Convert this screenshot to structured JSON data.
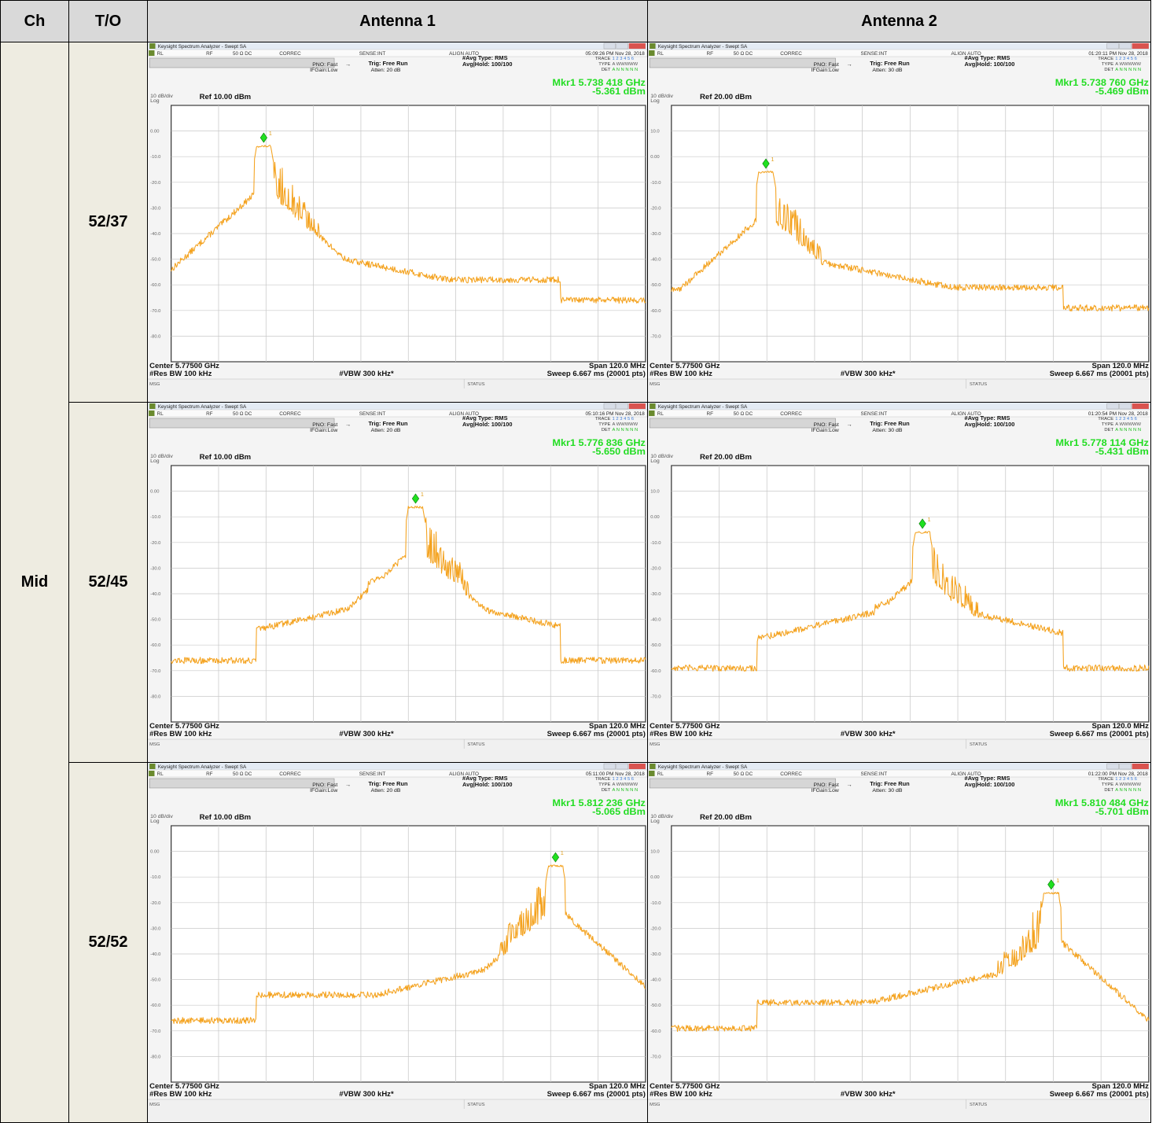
{
  "table": {
    "headers": {
      "ch": "Ch",
      "to": "T/O",
      "ant1": "Antenna 1",
      "ant2": "Antenna 2"
    },
    "channel": "Mid",
    "rows": [
      {
        "to": "52/37"
      },
      {
        "to": "52/45"
      },
      {
        "to": "52/52"
      }
    ]
  },
  "analyzer": {
    "window_title": "Keysight Spectrum Analyzer - Swept SA",
    "status_row": {
      "rl": "RL",
      "rf": "RF",
      "ohm": "50 Ω  DC",
      "correc": "CORREC",
      "sense": "SENSE:INT",
      "align": "ALIGN AUTO"
    },
    "pno": "PNO: Fast",
    "ifgain": "IFGain:Low",
    "trig": "Trig: Free Run",
    "avg_type": "#Avg Type: RMS",
    "avg_hold": "Avg|Hold: 100/100",
    "trace_label": "TRACE",
    "type_label": "TYPE",
    "det_label": "DET",
    "trace_nums": "1 2 3 4 5 6",
    "type_val": "A WWWWW",
    "det_val": "A N N N N N",
    "scale": "10 dB/div",
    "log": "Log",
    "center": "Center 5.77500 GHz",
    "rbw": "#Res BW 100 kHz",
    "vbw": "#VBW 300 kHz*",
    "span": "Span 120.0 MHz",
    "sweep": "Sweep  6.667 ms (20001 pts)",
    "msg": "MSG",
    "status": "STATUS",
    "colors": {
      "trace": "#f4a21e",
      "marker": "#20e020",
      "readout": "#22dd22",
      "frame": "#3c3c3c",
      "grid": "#c8c8c8"
    }
  },
  "chart_data": [
    {
      "type": "line",
      "row": 0,
      "antenna": 1,
      "time": "05:09:26 PM Nov 28, 2018",
      "atten": "Atten: 20 dB",
      "ref": "Ref 10.00 dBm",
      "ref_dbm": 10,
      "y_ticks": [
        "0.00",
        "-10.0",
        "-20.0",
        "-30.0",
        "-40.0",
        "-50.0",
        "-60.0",
        "-70.0",
        "-80.0"
      ],
      "marker_freq": "Mkr1 5.738 418 GHz",
      "marker_amp": "-5.361 dBm",
      "marker_label": "1",
      "marker": {
        "f": 5.738418,
        "a": -5.361
      },
      "peak_ghz": 5.73842,
      "floor": -66,
      "wide": false,
      "burst_side": "right"
    },
    {
      "type": "line",
      "row": 0,
      "antenna": 2,
      "time": "01:20:11 PM Nov 28, 2018",
      "atten": "Atten: 30 dB",
      "ref": "Ref 20.00 dBm",
      "ref_dbm": 20,
      "y_ticks": [
        "10.0",
        "0.00",
        "-10.0",
        "-20.0",
        "-30.0",
        "-40.0",
        "-50.0",
        "-60.0",
        "-70.0"
      ],
      "marker_freq": "Mkr1 5.738 760 GHz",
      "marker_amp": "-5.469 dBm",
      "marker_label": "1",
      "marker": {
        "f": 5.73876,
        "a": -5.469
      },
      "peak_ghz": 5.73876,
      "floor": -59,
      "wide": false,
      "burst_side": "right"
    },
    {
      "type": "line",
      "row": 1,
      "antenna": 1,
      "time": "05:10:16 PM Nov 28, 2018",
      "atten": "Atten: 20 dB",
      "ref": "Ref 10.00 dBm",
      "ref_dbm": 10,
      "y_ticks": [
        "0.00",
        "-10.0",
        "-20.0",
        "-30.0",
        "-40.0",
        "-50.0",
        "-60.0",
        "-70.0",
        "-80.0"
      ],
      "marker_freq": "Mkr1 5.776 836 GHz",
      "marker_amp": "-5.650 dBm",
      "marker_label": "1",
      "marker": {
        "f": 5.776836,
        "a": -5.65
      },
      "peak_ghz": 5.77684,
      "floor": -66,
      "wide": true,
      "burst_side": "right"
    },
    {
      "type": "line",
      "row": 1,
      "antenna": 2,
      "time": "01:20:54 PM Nov 28, 2018",
      "atten": "Atten: 30 dB",
      "ref": "Ref 20.00 dBm",
      "ref_dbm": 20,
      "y_ticks": [
        "10.0",
        "0.00",
        "-10.0",
        "-20.0",
        "-30.0",
        "-40.0",
        "-50.0",
        "-60.0",
        "-70.0"
      ],
      "marker_freq": "Mkr1 5.778 114 GHz",
      "marker_amp": "-5.431 dBm",
      "marker_label": "1",
      "marker": {
        "f": 5.778114,
        "a": -5.431
      },
      "peak_ghz": 5.77811,
      "floor": -59,
      "wide": true,
      "burst_side": "right"
    },
    {
      "type": "line",
      "row": 2,
      "antenna": 1,
      "time": "05:11:00 PM Nov 28, 2018",
      "atten": "Atten: 20 dB",
      "ref": "Ref 10.00 dBm",
      "ref_dbm": 10,
      "y_ticks": [
        "0.00",
        "-10.0",
        "-20.0",
        "-30.0",
        "-40.0",
        "-50.0",
        "-60.0",
        "-70.0",
        "-80.0"
      ],
      "marker_freq": "Mkr1 5.812 236 GHz",
      "marker_amp": "-5.065 dBm",
      "marker_label": "1",
      "marker": {
        "f": 5.812236,
        "a": -5.065
      },
      "peak_ghz": 5.81224,
      "floor": -66,
      "wide": true,
      "burst_side": "left"
    },
    {
      "type": "line",
      "row": 2,
      "antenna": 2,
      "time": "01:22:00 PM Nov 28, 2018",
      "atten": "Atten: 30 dB",
      "ref": "Ref 20.00 dBm",
      "ref_dbm": 20,
      "y_ticks": [
        "10.0",
        "0.00",
        "-10.0",
        "-20.0",
        "-30.0",
        "-40.0",
        "-50.0",
        "-60.0",
        "-70.0"
      ],
      "marker_freq": "Mkr1 5.810 484 GHz",
      "marker_amp": "-5.701 dBm",
      "marker_label": "1",
      "marker": {
        "f": 5.810484,
        "a": -5.701
      },
      "peak_ghz": 5.81048,
      "floor": -59,
      "wide": true,
      "burst_side": "left"
    }
  ]
}
